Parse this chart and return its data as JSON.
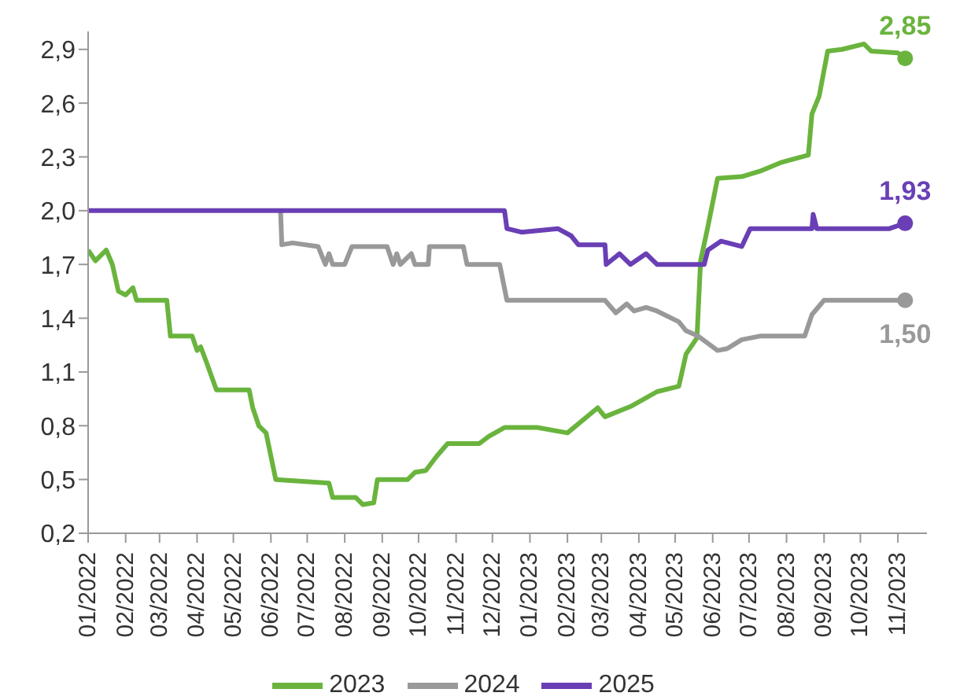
{
  "chart_data": {
    "type": "line",
    "xlim": [
      "2022-01-01",
      "2023-11-25"
    ],
    "xticks": [
      {
        "value": "2022-01",
        "label": "01/2022"
      },
      {
        "value": "2022-02",
        "label": "02/2022"
      },
      {
        "value": "2022-03",
        "label": "03/2022"
      },
      {
        "value": "2022-04",
        "label": "04/2022"
      },
      {
        "value": "2022-05",
        "label": "05/2022"
      },
      {
        "value": "2022-06",
        "label": "06/2022"
      },
      {
        "value": "2022-07",
        "label": "07/2022"
      },
      {
        "value": "2022-08",
        "label": "08/2022"
      },
      {
        "value": "2022-09",
        "label": "09/2022"
      },
      {
        "value": "2022-10",
        "label": "10/2022"
      },
      {
        "value": "2022-11",
        "label": "11/2022"
      },
      {
        "value": "2022-12",
        "label": "12/2022"
      },
      {
        "value": "2023-01",
        "label": "01/2023"
      },
      {
        "value": "2023-02",
        "label": "02/2023"
      },
      {
        "value": "2023-03",
        "label": "03/2023"
      },
      {
        "value": "2023-04",
        "label": "04/2023"
      },
      {
        "value": "2023-05",
        "label": "05/2023"
      },
      {
        "value": "2023-06",
        "label": "06/2023"
      },
      {
        "value": "2023-07",
        "label": "07/2023"
      },
      {
        "value": "2023-08",
        "label": "08/2023"
      },
      {
        "value": "2023-09",
        "label": "09/2023"
      },
      {
        "value": "2023-10",
        "label": "10/2023"
      },
      {
        "value": "2023-11",
        "label": "11/2023"
      }
    ],
    "ylim": [
      0.2,
      3.0
    ],
    "yticks": [
      {
        "value": 0.2,
        "label": "0,2"
      },
      {
        "value": 0.5,
        "label": "0,5"
      },
      {
        "value": 0.8,
        "label": "0,8"
      },
      {
        "value": 1.1,
        "label": "1,1"
      },
      {
        "value": 1.4,
        "label": "1,4"
      },
      {
        "value": 1.7,
        "label": "1,7"
      },
      {
        "value": 2.0,
        "label": "2,0"
      },
      {
        "value": 2.3,
        "label": "2,3"
      },
      {
        "value": 2.6,
        "label": "2,6"
      },
      {
        "value": 2.9,
        "label": "2,9"
      }
    ],
    "grid": false,
    "legend": "bottom",
    "marker": "none",
    "line_style": "solid",
    "series": [
      {
        "name": "2023",
        "color": "#6ab43e",
        "x": [
          "2022-01-01",
          "2022-01-07",
          "2022-01-16",
          "2022-01-21",
          "2022-01-26",
          "2022-02-01",
          "2022-02-07",
          "2022-02-10",
          "2022-03-07",
          "2022-03-10",
          "2022-03-28",
          "2022-04-01",
          "2022-04-04",
          "2022-04-09",
          "2022-04-17",
          "2022-05-14",
          "2022-05-17",
          "2022-05-22",
          "2022-05-28",
          "2022-06-05",
          "2022-07-19",
          "2022-07-22",
          "2022-08-10",
          "2022-08-16",
          "2022-08-25",
          "2022-08-28",
          "2022-09-22",
          "2022-09-28",
          "2022-10-07",
          "2022-10-16",
          "2022-10-25",
          "2022-11-20",
          "2022-11-28",
          "2022-12-11",
          "2023-01-07",
          "2023-02-01",
          "2023-02-26",
          "2023-03-04",
          "2023-03-26",
          "2023-04-16",
          "2023-05-04",
          "2023-05-10",
          "2023-05-19",
          "2023-05-22",
          "2023-05-28",
          "2023-06-05",
          "2023-06-25",
          "2023-07-10",
          "2023-07-28",
          "2023-08-19",
          "2023-08-22",
          "2023-08-28",
          "2023-09-04",
          "2023-09-16",
          "2023-10-04",
          "2023-10-10",
          "2023-11-01",
          "2023-11-07"
        ],
        "values": [
          1.78,
          1.72,
          1.78,
          1.7,
          1.55,
          1.53,
          1.57,
          1.5,
          1.5,
          1.3,
          1.3,
          1.22,
          1.24,
          1.15,
          1.0,
          1.0,
          0.9,
          0.8,
          0.76,
          0.5,
          0.48,
          0.4,
          0.4,
          0.36,
          0.37,
          0.5,
          0.5,
          0.54,
          0.55,
          0.63,
          0.7,
          0.7,
          0.74,
          0.79,
          0.79,
          0.76,
          0.9,
          0.85,
          0.91,
          0.99,
          1.02,
          1.2,
          1.29,
          1.72,
          1.91,
          2.18,
          2.19,
          2.22,
          2.27,
          2.31,
          2.54,
          2.64,
          2.89,
          2.9,
          2.93,
          2.89,
          2.88,
          2.85
        ],
        "value_labels": [
          null,
          null,
          null,
          null,
          null,
          null,
          null,
          null,
          null,
          null,
          null,
          null,
          null,
          null,
          null,
          null,
          null,
          null,
          null,
          null,
          null,
          null,
          null,
          null,
          null,
          null,
          null,
          null,
          null,
          null,
          null,
          null,
          null,
          null,
          null,
          null,
          null,
          null,
          null,
          null,
          null,
          null,
          null,
          null,
          null,
          null,
          null,
          null,
          null,
          null,
          null,
          null,
          null,
          null,
          null,
          null,
          null,
          "2,85"
        ]
      },
      {
        "name": "2024",
        "color": "#999999",
        "x": [
          "2022-06-09",
          "2022-06-10",
          "2022-06-19",
          "2022-07-10",
          "2022-07-16",
          "2022-07-19",
          "2022-07-22",
          "2022-08-01",
          "2022-08-07",
          "2022-09-05",
          "2022-09-10",
          "2022-09-13",
          "2022-09-16",
          "2022-09-25",
          "2022-09-28",
          "2022-10-09",
          "2022-10-10",
          "2022-11-07",
          "2022-11-10",
          "2022-12-07",
          "2022-12-13",
          "2023-03-04",
          "2023-03-13",
          "2023-03-22",
          "2023-03-28",
          "2023-04-07",
          "2023-04-16",
          "2023-05-04",
          "2023-05-10",
          "2023-05-20",
          "2023-06-05",
          "2023-06-13",
          "2023-06-25",
          "2023-07-10",
          "2023-08-16",
          "2023-08-22",
          "2023-09-01",
          "2023-11-07"
        ],
        "values": [
          2.0,
          1.81,
          1.82,
          1.8,
          1.7,
          1.76,
          1.7,
          1.7,
          1.8,
          1.8,
          1.7,
          1.76,
          1.7,
          1.76,
          1.7,
          1.7,
          1.8,
          1.8,
          1.7,
          1.7,
          1.5,
          1.5,
          1.43,
          1.48,
          1.44,
          1.46,
          1.44,
          1.38,
          1.33,
          1.3,
          1.22,
          1.23,
          1.28,
          1.3,
          1.3,
          1.42,
          1.5,
          1.5
        ],
        "value_labels": [
          null,
          null,
          null,
          null,
          null,
          null,
          null,
          null,
          null,
          null,
          null,
          null,
          null,
          null,
          null,
          null,
          null,
          null,
          null,
          null,
          null,
          null,
          null,
          null,
          null,
          null,
          null,
          null,
          null,
          null,
          null,
          null,
          null,
          null,
          null,
          null,
          null,
          "1,50"
        ]
      },
      {
        "name": "2025",
        "color": "#6a3fb5",
        "x": [
          "2022-01-01",
          "2022-12-11",
          "2022-12-13",
          "2022-12-25",
          "2023-01-24",
          "2023-02-04",
          "2023-02-10",
          "2023-03-04",
          "2023-03-05",
          "2023-03-16",
          "2023-03-25",
          "2023-04-07",
          "2023-04-16",
          "2023-05-25",
          "2023-05-28",
          "2023-06-08",
          "2023-06-25",
          "2023-07-02",
          "2023-08-22",
          "2023-08-23",
          "2023-08-26",
          "2023-10-25",
          "2023-11-07"
        ],
        "values": [
          2.0,
          2.0,
          1.9,
          1.88,
          1.9,
          1.86,
          1.81,
          1.81,
          1.7,
          1.76,
          1.7,
          1.76,
          1.7,
          1.7,
          1.78,
          1.83,
          1.8,
          1.9,
          1.9,
          1.98,
          1.9,
          1.9,
          1.93
        ],
        "value_labels": [
          null,
          null,
          null,
          null,
          null,
          null,
          null,
          null,
          null,
          null,
          null,
          null,
          null,
          null,
          null,
          null,
          null,
          null,
          null,
          null,
          null,
          null,
          "1,93"
        ]
      }
    ]
  }
}
